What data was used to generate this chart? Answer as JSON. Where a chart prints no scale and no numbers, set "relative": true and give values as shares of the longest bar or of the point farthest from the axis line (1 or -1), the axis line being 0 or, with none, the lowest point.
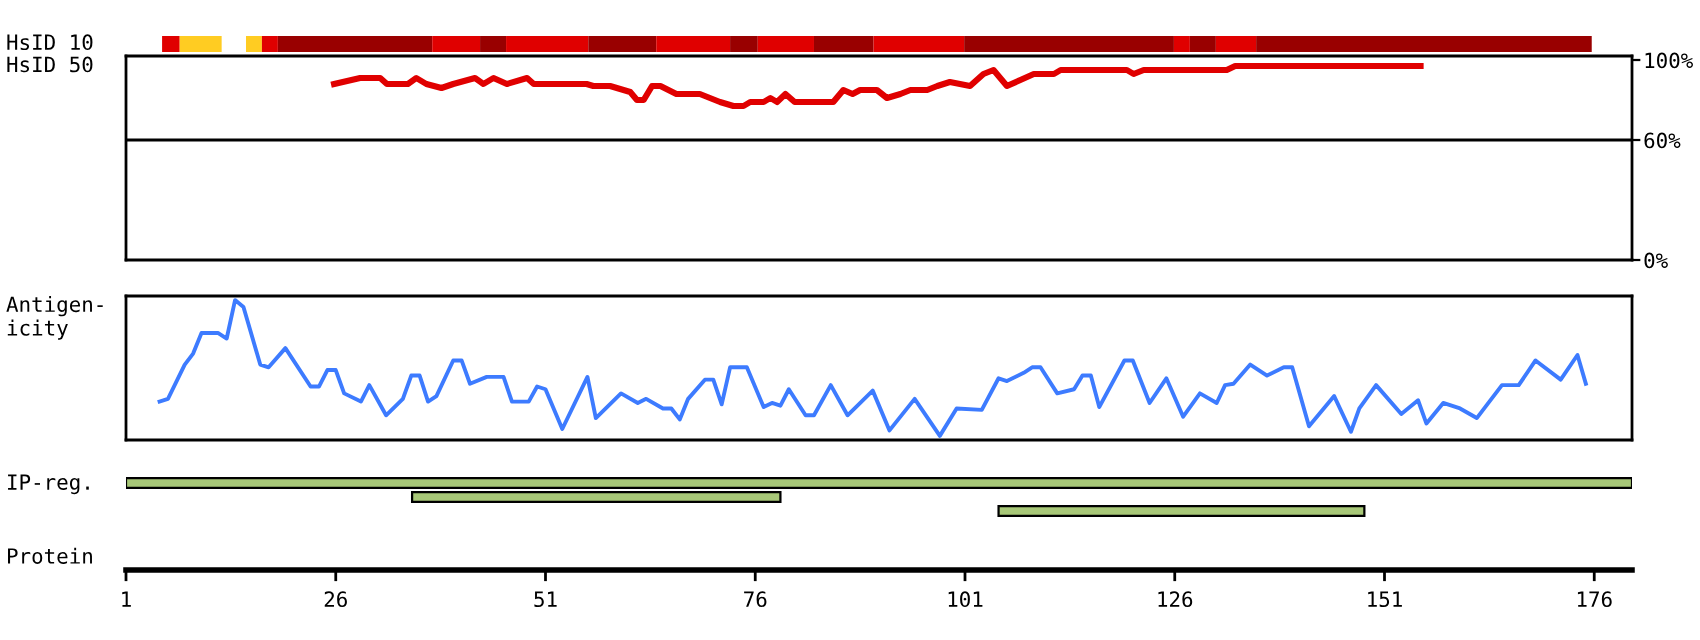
{
  "chart_data": [
    {
      "type": "bar",
      "orientation": "horizontal",
      "ylabel": "HsID 10",
      "categories": [
        null
      ],
      "xlim": [
        1,
        180.5
      ],
      "tick_labels": false,
      "series": [
        {
          "color": "#e00000",
          "base": [
            5.3
          ],
          "values": [
            2.1
          ]
        },
        {
          "color": "#ffcc22",
          "base": [
            7.4
          ],
          "values": [
            5.0
          ]
        },
        {
          "color": "#ffcc22",
          "base": [
            15.3
          ],
          "values": [
            1.9
          ]
        },
        {
          "color": "#e00000",
          "base": [
            17.2
          ],
          "values": [
            1.9
          ]
        },
        {
          "color": "#990000",
          "base": [
            19.1
          ],
          "values": [
            18.4
          ]
        },
        {
          "color": "#e00000",
          "base": [
            37.5
          ],
          "values": [
            5.7
          ]
        },
        {
          "color": "#990000",
          "base": [
            43.2
          ],
          "values": [
            3.1
          ]
        },
        {
          "color": "#e00000",
          "base": [
            46.3
          ],
          "values": [
            9.8
          ]
        },
        {
          "color": "#990000",
          "base": [
            56.1
          ],
          "values": [
            8.1
          ]
        },
        {
          "color": "#e00000",
          "base": [
            64.2
          ],
          "values": [
            8.8
          ]
        },
        {
          "color": "#990000",
          "base": [
            73.0
          ],
          "values": [
            3.3
          ]
        },
        {
          "color": "#e00000",
          "base": [
            76.3
          ],
          "values": [
            6.7
          ]
        },
        {
          "color": "#990000",
          "base": [
            83.0
          ],
          "values": [
            7.1
          ]
        },
        {
          "color": "#e00000",
          "base": [
            90.1
          ],
          "values": [
            10.8
          ]
        },
        {
          "color": "#990000",
          "base": [
            100.9
          ],
          "values": [
            25.0
          ]
        },
        {
          "color": "#e00000",
          "base": [
            125.9
          ],
          "values": [
            1.9
          ]
        },
        {
          "color": "#990000",
          "base": [
            127.8
          ],
          "values": [
            3.1
          ]
        },
        {
          "color": "#e00000",
          "base": [
            130.9
          ],
          "values": [
            4.8
          ]
        },
        {
          "color": "#990000",
          "base": [
            135.7
          ],
          "values": [
            40.0
          ]
        }
      ]
    },
    {
      "type": "line",
      "ylabel": "HsID 50",
      "xlim": [
        1,
        180.5
      ],
      "ylim": [
        0,
        102
      ],
      "yticks": [
        {
          "value": 100,
          "label": "100%"
        },
        {
          "value": 60,
          "label": "60%"
        },
        {
          "value": 0,
          "label": "0%"
        }
      ],
      "tick_labels": "y",
      "marker": "none",
      "line_style": "solid",
      "ref_lines": [
        {
          "axis": "y",
          "value": 60,
          "color": "#000000"
        }
      ],
      "x": [
        25.8,
        28.9,
        31.3,
        32.1,
        34.6,
        35.6,
        36.8,
        38.6,
        40.0,
        42.6,
        43.6,
        44.8,
        46.4,
        48.8,
        49.6,
        55.9,
        56.7,
        58.7,
        61.1,
        61.9,
        62.7,
        63.7,
        64.7,
        66.6,
        69.4,
        71.8,
        73.4,
        74.6,
        75.4,
        77.0,
        77.8,
        78.6,
        79.6,
        80.7,
        85.3,
        86.5,
        87.6,
        88.5,
        90.5,
        91.7,
        93.3,
        94.5,
        96.5,
        97.7,
        99.2,
        100.4,
        101.6,
        103.2,
        104.4,
        106.0,
        107.6,
        109.2,
        111.6,
        112.4,
        120.3,
        121.1,
        122.3,
        132.2,
        133.2,
        155.3
      ],
      "series": [
        {
          "color": "#e00000",
          "values": [
            88,
            91,
            91,
            88,
            88,
            91,
            88,
            86,
            88,
            91,
            88,
            91,
            88,
            91,
            88,
            88,
            87,
            87,
            84,
            80,
            80,
            87,
            87,
            83,
            83,
            79,
            77,
            77,
            79,
            79,
            81,
            79,
            83,
            79,
            79,
            85,
            83,
            85,
            85,
            81,
            83,
            85,
            85,
            87,
            89,
            88,
            87,
            93,
            95,
            87,
            90,
            93,
            93,
            95,
            95,
            93,
            95,
            95,
            97,
            97
          ]
        }
      ]
    },
    {
      "type": "line",
      "ylabel": "Antigen-\nicity",
      "relative": true,
      "xlim": [
        1,
        180.5
      ],
      "tick_labels": false,
      "marker": "none",
      "line_style": "solid",
      "x": [
        5,
        6,
        8,
        9,
        10,
        12,
        13,
        14,
        15,
        17,
        18,
        20,
        23,
        24,
        25,
        26,
        27,
        29,
        30,
        32,
        34,
        35,
        36,
        37,
        38,
        40,
        41,
        42,
        44,
        46,
        47,
        49,
        50,
        51,
        53,
        56,
        57,
        60,
        62,
        63,
        65,
        66,
        67,
        68,
        70,
        71,
        72,
        73,
        75,
        77,
        78,
        79,
        80,
        82,
        83,
        85,
        87,
        88,
        90,
        92,
        95,
        98,
        100,
        103,
        105,
        106,
        108,
        109,
        110,
        112,
        114,
        115,
        116,
        117,
        120,
        121,
        123,
        125,
        127,
        129,
        131,
        132,
        133,
        135,
        137,
        139,
        140,
        142,
        145,
        147,
        148,
        150,
        153,
        155,
        156,
        158,
        160,
        162,
        165,
        167,
        169,
        172,
        174,
        175
      ],
      "series": [
        {
          "color": "#3d7bff",
          "values": [
            0.26,
            0.28,
            0.53,
            0.61,
            0.76,
            0.76,
            0.72,
            1.0,
            0.95,
            0.53,
            0.51,
            0.65,
            0.37,
            0.37,
            0.49,
            0.49,
            0.32,
            0.26,
            0.38,
            0.16,
            0.28,
            0.45,
            0.45,
            0.26,
            0.3,
            0.56,
            0.56,
            0.39,
            0.44,
            0.44,
            0.26,
            0.26,
            0.37,
            0.35,
            0.06,
            0.44,
            0.14,
            0.32,
            0.25,
            0.28,
            0.21,
            0.21,
            0.13,
            0.28,
            0.42,
            0.42,
            0.24,
            0.51,
            0.51,
            0.22,
            0.25,
            0.23,
            0.35,
            0.16,
            0.16,
            0.38,
            0.16,
            0.22,
            0.34,
            0.05,
            0.28,
            0.01,
            0.21,
            0.2,
            0.43,
            0.41,
            0.47,
            0.51,
            0.51,
            0.32,
            0.35,
            0.45,
            0.45,
            0.22,
            0.56,
            0.56,
            0.25,
            0.43,
            0.15,
            0.32,
            0.25,
            0.38,
            0.39,
            0.53,
            0.45,
            0.51,
            0.51,
            0.08,
            0.3,
            0.04,
            0.21,
            0.38,
            0.17,
            0.27,
            0.1,
            0.25,
            0.21,
            0.14,
            0.38,
            0.38,
            0.56,
            0.42,
            0.6,
            0.39
          ]
        }
      ]
    },
    {
      "type": "bar",
      "orientation": "horizontal",
      "ylabel": "IP-reg.",
      "xlabel": "Protein",
      "categories": [
        null,
        null,
        null
      ],
      "xlim": [
        1,
        180.5
      ],
      "xticks": [
        1,
        26,
        51,
        76,
        101,
        126,
        151,
        176
      ],
      "tick_labels": "x",
      "color": "#a8c878",
      "base": [
        1,
        35.1,
        105.0
      ],
      "values": [
        179.5,
        43.9,
        43.6
      ]
    }
  ]
}
